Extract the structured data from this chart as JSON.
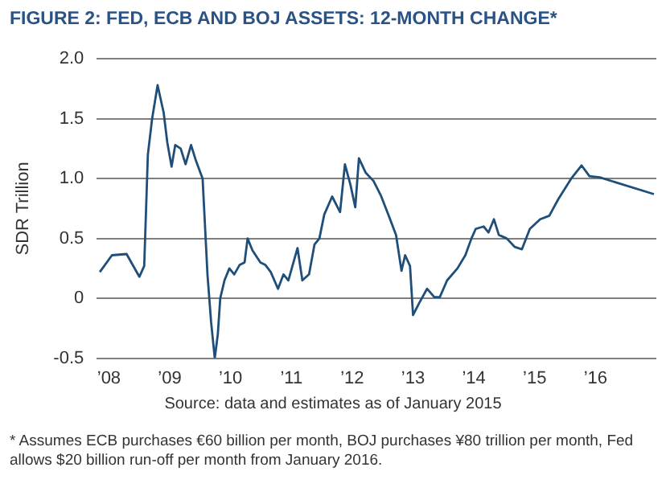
{
  "chart_data": {
    "type": "line",
    "title": "FIGURE 2: FED, ECB AND BOJ ASSETS: 12-MONTH CHANGE*",
    "ylabel": "SDR Trillion",
    "annotations": [
      "Source: data and estimates as of January 2015",
      "* Assumes ECB purchases €60 billion per month, BOJ purchases ¥80 trillion per month, Fed allows $20 billion run-off per month from January 2016."
    ],
    "xlim": [
      2007.8,
      2017.0
    ],
    "xticks": [
      {
        "value": 2008,
        "label": "’08"
      },
      {
        "value": 2009,
        "label": "’09"
      },
      {
        "value": 2010,
        "label": "’10"
      },
      {
        "value": 2011,
        "label": "’11"
      },
      {
        "value": 2012,
        "label": "’12"
      },
      {
        "value": 2013,
        "label": "’13"
      },
      {
        "value": 2014,
        "label": "’14"
      },
      {
        "value": 2015,
        "label": "’15"
      },
      {
        "value": 2016,
        "label": "’16"
      }
    ],
    "ylim": [
      -0.5,
      2.0
    ],
    "yticks": [
      -0.5,
      0,
      0.5,
      {
        "value": 1,
        "label": "1.0"
      },
      1.5,
      {
        "value": 2,
        "label": "2.0"
      }
    ],
    "grid": "y",
    "legend": false,
    "marker": "none",
    "line_style": "solid",
    "series": [
      {
        "color": "#1f4e79",
        "x": [
          2007.85,
          2008.05,
          2008.29,
          2008.5,
          2008.58,
          2008.64,
          2008.71,
          2008.8,
          2008.9,
          2008.96,
          2009.03,
          2009.09,
          2009.18,
          2009.26,
          2009.35,
          2009.43,
          2009.54,
          2009.57,
          2009.62,
          2009.68,
          2009.74,
          2009.79,
          2009.83,
          2009.9,
          2009.98,
          2010.06,
          2010.15,
          2010.23,
          2010.28,
          2010.36,
          2010.49,
          2010.57,
          2010.66,
          2010.78,
          2010.87,
          2010.95,
          2011.1,
          2011.18,
          2011.29,
          2011.38,
          2011.46,
          2011.54,
          2011.67,
          2011.8,
          2011.88,
          2011.97,
          2012.05,
          2012.11,
          2012.22,
          2012.35,
          2012.47,
          2012.6,
          2012.72,
          2012.81,
          2012.87,
          2012.95,
          2013.0,
          2013.1,
          2013.23,
          2013.35,
          2013.44,
          2013.56,
          2013.73,
          2013.86,
          2013.96,
          2014.03,
          2014.16,
          2014.24,
          2014.33,
          2014.41,
          2014.54,
          2014.67,
          2014.79,
          2014.92,
          2015.09,
          2015.24,
          2015.39,
          2015.6,
          2015.77,
          2015.9,
          2016.07,
          2016.96
        ],
        "values": [
          0.22,
          0.36,
          0.37,
          0.18,
          0.27,
          1.2,
          1.5,
          1.78,
          1.55,
          1.3,
          1.1,
          1.28,
          1.25,
          1.12,
          1.28,
          1.15,
          1.0,
          0.7,
          0.2,
          -0.2,
          -0.5,
          -0.3,
          0.0,
          0.15,
          0.25,
          0.2,
          0.28,
          0.3,
          0.5,
          0.4,
          0.3,
          0.28,
          0.22,
          0.08,
          0.2,
          0.15,
          0.42,
          0.15,
          0.2,
          0.45,
          0.5,
          0.7,
          0.85,
          0.72,
          1.12,
          0.95,
          0.76,
          1.17,
          1.05,
          0.98,
          0.86,
          0.69,
          0.53,
          0.23,
          0.36,
          0.27,
          -0.14,
          -0.04,
          0.08,
          0.01,
          0.01,
          0.15,
          0.25,
          0.36,
          0.5,
          0.58,
          0.6,
          0.55,
          0.66,
          0.53,
          0.5,
          0.43,
          0.41,
          0.58,
          0.66,
          0.69,
          0.83,
          1.0,
          1.11,
          1.02,
          1.01,
          0.87
        ]
      }
    ]
  }
}
